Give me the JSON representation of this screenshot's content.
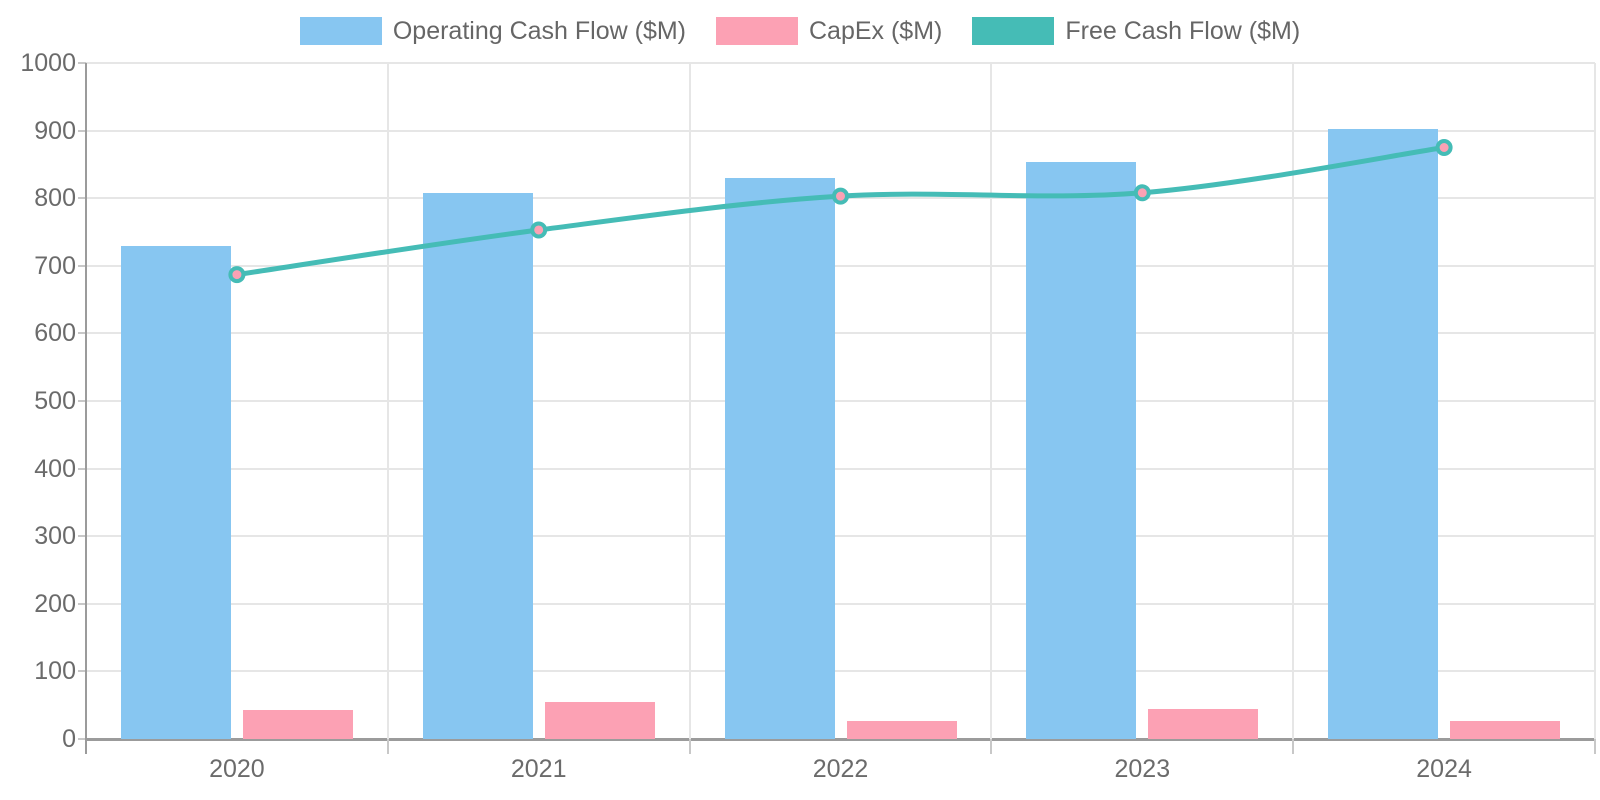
{
  "chart_data": {
    "type": "combo-bar-line",
    "title": "",
    "categories": [
      "2020",
      "2021",
      "2022",
      "2023",
      "2024"
    ],
    "series": [
      {
        "name": "Operating Cash Flow ($M)",
        "type": "bar",
        "color": "#87C6F1",
        "values": [
          730,
          807,
          830,
          853,
          902
        ]
      },
      {
        "name": "CapEx ($M)",
        "type": "bar",
        "color": "#FCA1B4",
        "values": [
          43,
          54,
          27,
          45,
          27
        ]
      },
      {
        "name": "Free Cash Flow ($M)",
        "type": "line",
        "color": "#45BCB6",
        "point_fill": "#FCA1B4",
        "values": [
          687,
          753,
          803,
          808,
          875
        ]
      }
    ],
    "xlabel": "",
    "ylabel": "",
    "ylim": [
      0,
      1000
    ],
    "ytick_step": 100,
    "grid": true,
    "legend_position": "top",
    "colors": {
      "axis_text": "#6b6b6b",
      "legend_text": "#666666",
      "gridline": "#e6e6e6",
      "axis_line": "#9b9b9b",
      "tick_mark": "#c8c8c8"
    }
  }
}
